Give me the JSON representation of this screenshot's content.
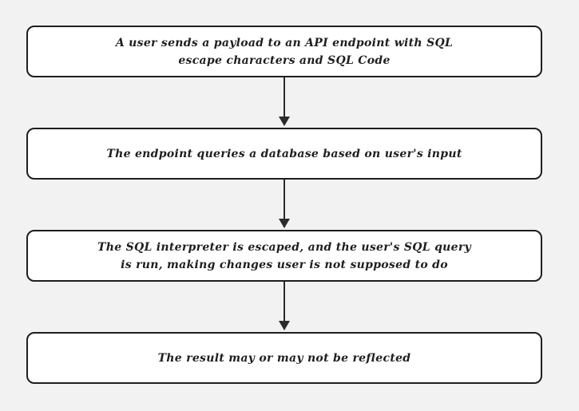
{
  "diagram": {
    "steps": [
      {
        "text": "A user sends a payload to an API endpoint with SQL\nescape characters and SQL Code"
      },
      {
        "text": "The endpoint queries a database based on user's input"
      },
      {
        "text": "The SQL interpreter is escaped, and the user's SQL query\nis run, making changes user is not supposed to do"
      },
      {
        "text": "The result may or may not be reflected"
      }
    ],
    "colors": {
      "background": "#f2f2f2",
      "box_fill": "#ffffff",
      "stroke": "#1e1e1e"
    }
  }
}
